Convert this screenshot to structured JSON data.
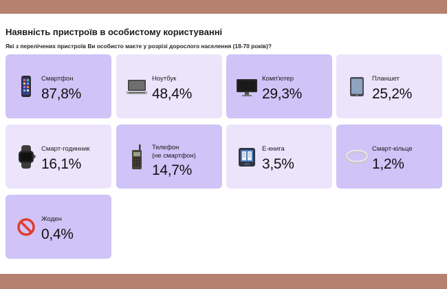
{
  "header": {
    "title": "Наявність пристроїв в особистому користуванні",
    "subtitle": "Які з перелічених пристроїв Ви особисто маєте у розрізі дорослого населення (18-70 років)?"
  },
  "cards": [
    {
      "label": "Смартфон",
      "value": "87,8%",
      "icon": "smartphone-icon"
    },
    {
      "label": "Ноутбук",
      "value": "48,4%",
      "icon": "laptop-icon"
    },
    {
      "label": "Комп'ютер",
      "value": "29,3%",
      "icon": "desktop-monitor-icon"
    },
    {
      "label": "Планшет",
      "value": "25,2%",
      "icon": "tablet-icon"
    },
    {
      "label": "Смарт-годинник",
      "value": "16,1%",
      "icon": "smartwatch-icon"
    },
    {
      "label_line1": "Телефон",
      "label_line2": "(не смартфон)",
      "value": "14,7%",
      "icon": "mobile-phone-icon"
    },
    {
      "label": "Е-книга",
      "value": "3,5%",
      "icon": "ebook-icon"
    },
    {
      "label": "Смарт-кільце",
      "value": "1,2%",
      "icon": "smart-ring-icon"
    },
    {
      "label": "Жоден",
      "value": "0,4%",
      "icon": "prohibited-icon"
    }
  ],
  "colors": {
    "card_dark": "#cfc3f7",
    "card_light": "#ebe4fb",
    "background": "#b58270"
  }
}
